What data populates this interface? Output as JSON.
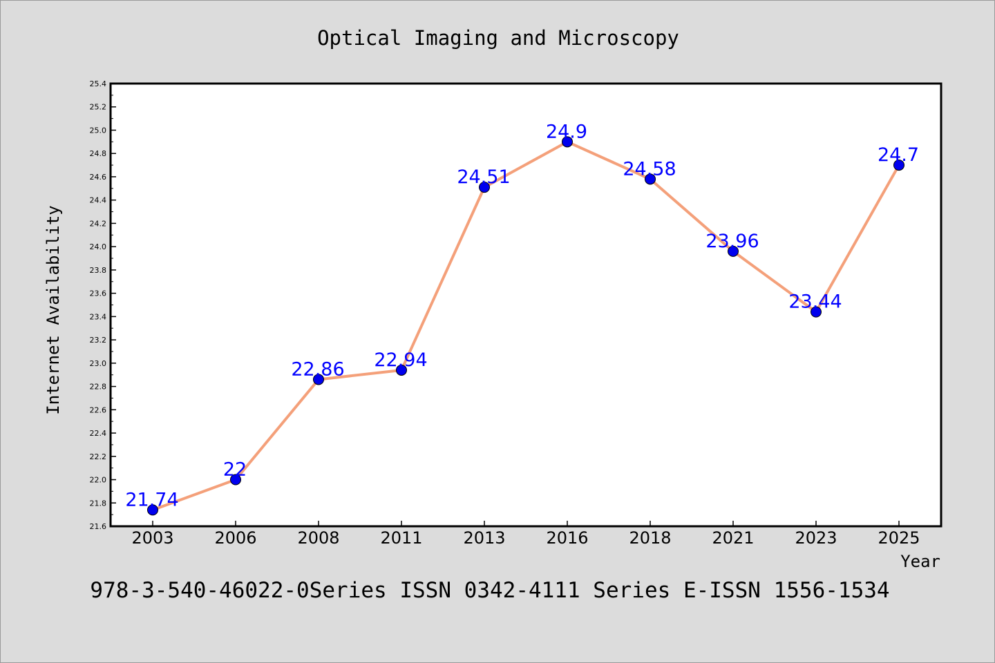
{
  "colors": {
    "background": "#dcdcdc",
    "plot_background": "#ffffff",
    "line": "#f4a07a",
    "marker": "#0000ee",
    "label": "#0000ff"
  },
  "footer": "978-3-540-46022-0Series ISSN 0342-4111 Series E-ISSN 1556-1534",
  "chart_data": {
    "type": "line",
    "title": "Optical Imaging and Microscopy",
    "xlabel": "Year",
    "ylabel": "Internet Availability",
    "categories": [
      "2003",
      "2006",
      "2008",
      "2011",
      "2013",
      "2016",
      "2018",
      "2021",
      "2023",
      "2025"
    ],
    "series": [
      {
        "values": [
          21.74,
          22,
          22.86,
          22.94,
          24.51,
          24.9,
          24.58,
          23.96,
          23.44,
          24.7
        ],
        "labels": [
          "21.74",
          "22",
          "22.86",
          "22.94",
          "24.51",
          "24.9",
          "24.58",
          "23.96",
          "23.44",
          "24.7"
        ]
      }
    ],
    "ylim": [
      21.6,
      25.4
    ],
    "yticks": [
      "21.6",
      "21.8",
      "22.0",
      "22.2",
      "22.4",
      "22.6",
      "22.8",
      "23.0",
      "23.2",
      "23.4",
      "23.6",
      "23.8",
      "24.0",
      "24.2",
      "24.4",
      "24.6",
      "24.8",
      "25.0",
      "25.2",
      "25.4"
    ],
    "grid": false,
    "legend": "none"
  }
}
